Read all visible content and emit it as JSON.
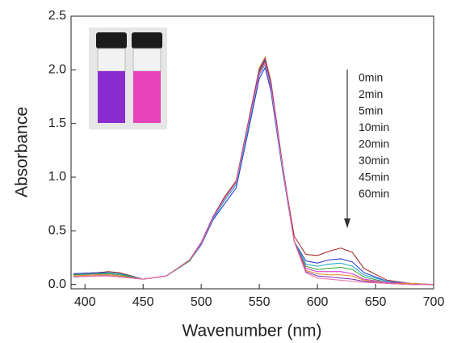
{
  "chart_data": {
    "type": "line",
    "xlabel": "Wavenumber (nm)",
    "ylabel": "Absorbance",
    "x": [
      390,
      410,
      420,
      430,
      450,
      470,
      490,
      500,
      510,
      520,
      530,
      540,
      550,
      555,
      560,
      570,
      580,
      590,
      600,
      610,
      620,
      630,
      640,
      660,
      680,
      700
    ],
    "series": [
      {
        "name": "0min",
        "color": "#a01e1e",
        "values": [
          0.1,
          0.11,
          0.12,
          0.11,
          0.05,
          0.08,
          0.22,
          0.38,
          0.62,
          0.8,
          0.95,
          1.45,
          1.98,
          2.08,
          1.86,
          1.1,
          0.45,
          0.28,
          0.27,
          0.31,
          0.34,
          0.3,
          0.15,
          0.04,
          0.01,
          0.0
        ]
      },
      {
        "name": "2min",
        "color": "#1f2fd6",
        "values": [
          0.1,
          0.11,
          0.11,
          0.1,
          0.05,
          0.08,
          0.22,
          0.37,
          0.6,
          0.75,
          0.9,
          1.4,
          1.92,
          2.02,
          1.8,
          1.06,
          0.4,
          0.22,
          0.2,
          0.23,
          0.24,
          0.21,
          0.11,
          0.03,
          0.01,
          0.0
        ]
      },
      {
        "name": "5min",
        "color": "#1aa5c8",
        "values": [
          0.09,
          0.1,
          0.11,
          0.1,
          0.05,
          0.08,
          0.22,
          0.38,
          0.61,
          0.78,
          0.93,
          1.43,
          1.95,
          2.05,
          1.83,
          1.08,
          0.4,
          0.19,
          0.17,
          0.19,
          0.2,
          0.17,
          0.09,
          0.03,
          0.01,
          0.0
        ]
      },
      {
        "name": "10min",
        "color": "#2e9e3a",
        "values": [
          0.09,
          0.1,
          0.1,
          0.09,
          0.05,
          0.08,
          0.22,
          0.38,
          0.62,
          0.8,
          0.95,
          1.46,
          1.99,
          2.09,
          1.87,
          1.1,
          0.4,
          0.17,
          0.14,
          0.15,
          0.16,
          0.14,
          0.07,
          0.02,
          0.01,
          0.0
        ]
      },
      {
        "name": "20min",
        "color": "#d02ad0",
        "values": [
          0.08,
          0.09,
          0.09,
          0.08,
          0.05,
          0.08,
          0.23,
          0.39,
          0.63,
          0.81,
          0.96,
          1.48,
          2.01,
          2.11,
          1.89,
          1.11,
          0.4,
          0.15,
          0.12,
          0.12,
          0.12,
          0.1,
          0.05,
          0.02,
          0.01,
          0.0
        ]
      },
      {
        "name": "30min",
        "color": "#e08a1e",
        "values": [
          0.08,
          0.09,
          0.09,
          0.08,
          0.05,
          0.08,
          0.23,
          0.39,
          0.63,
          0.82,
          0.97,
          1.49,
          2.02,
          2.12,
          1.9,
          1.12,
          0.4,
          0.13,
          0.1,
          0.09,
          0.09,
          0.08,
          0.04,
          0.01,
          0.01,
          0.0
        ]
      },
      {
        "name": "45min",
        "color": "#7a2ab0",
        "values": [
          0.07,
          0.08,
          0.08,
          0.07,
          0.05,
          0.08,
          0.23,
          0.39,
          0.63,
          0.81,
          0.96,
          1.48,
          2.0,
          2.1,
          1.88,
          1.11,
          0.4,
          0.12,
          0.08,
          0.07,
          0.06,
          0.05,
          0.03,
          0.01,
          0.0,
          0.0
        ]
      },
      {
        "name": "60min",
        "color": "#f06aa8",
        "values": [
          0.07,
          0.08,
          0.08,
          0.07,
          0.05,
          0.08,
          0.23,
          0.38,
          0.62,
          0.8,
          0.95,
          1.46,
          1.96,
          2.06,
          1.84,
          1.09,
          0.4,
          0.11,
          0.06,
          0.05,
          0.04,
          0.03,
          0.02,
          0.01,
          0.0,
          0.0
        ]
      }
    ],
    "xlim": [
      388,
      700
    ],
    "ylim": [
      -0.04,
      2.5
    ],
    "xticks": [
      400,
      450,
      500,
      550,
      600,
      650,
      700
    ],
    "yticks": [
      {
        "value": 0,
        "label": "0.0"
      },
      0.5,
      {
        "value": 1,
        "label": "1.0"
      },
      1.5,
      {
        "value": 2,
        "label": "2.0"
      },
      2.5
    ]
  }
}
